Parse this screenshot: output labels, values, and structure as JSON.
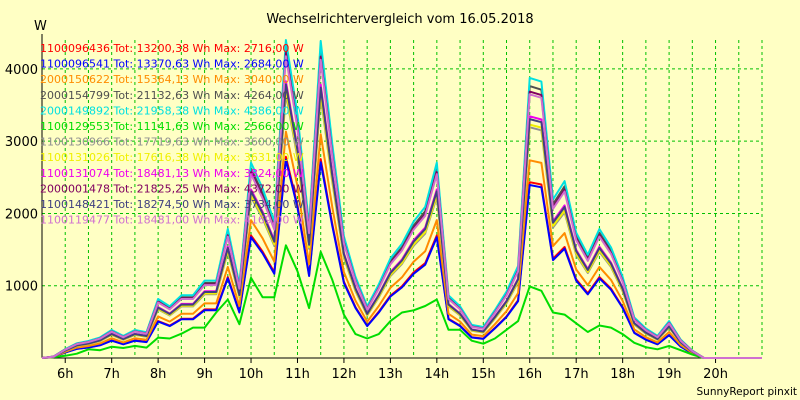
{
  "chart_data": {
    "type": "line",
    "title": "Wechselrichtervergleich vom 16.05.2018",
    "ylabel": "W",
    "footer": "SunnyReport pinxit",
    "ylim": [
      0,
      4400
    ],
    "xlim": [
      5.5,
      21.0
    ],
    "yticks": [
      1000,
      2000,
      3000,
      4000
    ],
    "xticks": [
      {
        "v": 6,
        "label": "6h"
      },
      {
        "v": 7,
        "label": "7h"
      },
      {
        "v": 8,
        "label": "8h"
      },
      {
        "v": 9,
        "label": "9h"
      },
      {
        "v": 10,
        "label": "10h"
      },
      {
        "v": 11,
        "label": "11h"
      },
      {
        "v": 12,
        "label": "12h"
      },
      {
        "v": 13,
        "label": "13h"
      },
      {
        "v": 14,
        "label": "14h"
      },
      {
        "v": 15,
        "label": "15h"
      },
      {
        "v": 16,
        "label": "16h"
      },
      {
        "v": 17,
        "label": "17h"
      },
      {
        "v": 18,
        "label": "18h"
      },
      {
        "v": 19,
        "label": "19h"
      },
      {
        "v": 20,
        "label": "20h"
      }
    ],
    "grid": true,
    "legend_position": "top-left",
    "x": [
      5.5,
      5.75,
      6.0,
      6.25,
      6.5,
      6.75,
      7.0,
      7.25,
      7.5,
      7.75,
      8.0,
      8.25,
      8.5,
      8.75,
      9.0,
      9.25,
      9.5,
      9.75,
      10.0,
      10.25,
      10.5,
      10.75,
      11.0,
      11.25,
      11.5,
      11.75,
      12.0,
      12.25,
      12.5,
      12.75,
      13.0,
      13.25,
      13.5,
      13.75,
      14.0,
      14.25,
      14.5,
      14.75,
      15.0,
      15.25,
      15.5,
      15.75,
      16.0,
      16.25,
      16.5,
      16.75,
      17.0,
      17.25,
      17.5,
      17.75,
      18.0,
      18.25,
      18.5,
      18.75,
      19.0,
      19.25,
      19.5,
      19.75,
      20.0,
      20.25,
      20.5,
      20.75,
      21.0
    ],
    "series": [
      {
        "name": "1100096436 Tot: 13200,38 Wh Max: 2716,00 W",
        "color": "#ff0000",
        "base": "A",
        "scale": 0.64
      },
      {
        "name": "1100096541 Tot: 13370,63 Wh Max: 2684,00 W",
        "color": "#0000ff",
        "base": "A",
        "scale": 0.63
      },
      {
        "name": "2000150622 Tot: 15364,13 Wh Max: 3040,00 W",
        "color": "#ff8c00",
        "base": "A",
        "scale": 0.72
      },
      {
        "name": "2000154799 Tot: 21132,63 Wh Max: 4264,00 W",
        "color": "#505050",
        "base": "A",
        "scale": 0.99
      },
      {
        "name": "2000149892 Tot: 21958,38 Wh Max: 4386,00 W",
        "color": "#00e0e0",
        "base": "A",
        "scale": 1.02
      },
      {
        "name": "1100129553 Tot: 11141,63 Wh Max: 2566,00 W",
        "color": "#00dd00",
        "base": "B",
        "scale": 0.6
      },
      {
        "name": "1100130966 Tot: 17719,63 Wh Max: 3600,00 W",
        "color": "#909090",
        "base": "A",
        "scale": 0.84
      },
      {
        "name": "1100131026 Tot: 17616,38 Wh Max: 3631,00 W",
        "color": "#f0f000",
        "base": "A",
        "scale": 0.85
      },
      {
        "name": "1100131074 Tot: 18481,13 Wh Max: 3824,00 W",
        "color": "#ee00ee",
        "base": "A",
        "scale": 0.88
      },
      {
        "name": "2000001478 Tot: 21825,25 Wh Max: 4372,00 W",
        "color": "#800060",
        "base": "A",
        "scale": 0.97
      },
      {
        "name": "1100148421 Tot: 18274,50 Wh Max: 3734,00 W",
        "color": "#404080",
        "base": "A",
        "scale": 0.87
      },
      {
        "name": "1100119477 Tot: 18481,00 Wh Max: 4169,00 W",
        "color": "#d070d0",
        "base": "A",
        "scale": 0.96
      }
    ],
    "base_profiles": {
      "A": [
        0,
        20,
        120,
        200,
        230,
        280,
        380,
        300,
        380,
        350,
        800,
        700,
        850,
        850,
        1050,
        1050,
        1750,
        1000,
        2650,
        2300,
        1850,
        4350,
        3300,
        1800,
        4300,
        2900,
        1650,
        1100,
        700,
        1000,
        1350,
        1550,
        1850,
        2050,
        2650,
        850,
        700,
        450,
        420,
        650,
        900,
        1250,
        3800,
        3750,
        2150,
        2400,
        1700,
        1400,
        1750,
        1500,
        1100,
        550,
        400,
        300,
        500,
        250,
        100,
        0,
        0,
        0,
        0,
        0,
        0
      ],
      "B": [
        0,
        20,
        50,
        100,
        200,
        180,
        260,
        230,
        280,
        240,
        470,
        450,
        560,
        700,
        700,
        1050,
        1350,
        780,
        1850,
        1400,
        1400,
        2600,
        2000,
        1150,
        2450,
        1800,
        1000,
        550,
        450,
        550,
        850,
        1050,
        1100,
        1200,
        1350,
        650,
        650,
        400,
        330,
        450,
        650,
        850,
        1650,
        1550,
        1050,
        1000,
        800,
        600,
        750,
        700,
        550,
        350,
        250,
        200,
        280,
        180,
        80,
        0,
        0,
        0,
        0,
        0,
        0
      ]
    }
  }
}
